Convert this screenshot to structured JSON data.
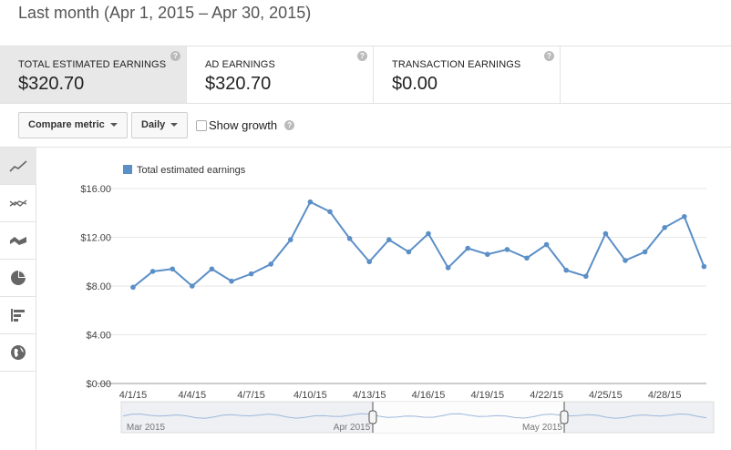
{
  "header": {
    "date_range": "Last month (Apr 1, 2015 – Apr 30, 2015)"
  },
  "metrics": [
    {
      "label": "TOTAL ESTIMATED EARNINGS",
      "value": "$320.70",
      "selected": true
    },
    {
      "label": "AD EARNINGS",
      "value": "$320.70",
      "selected": false
    },
    {
      "label": "TRANSACTION EARNINGS",
      "value": "$0.00",
      "selected": false
    }
  ],
  "toolbar": {
    "compare_label": "Compare metric",
    "granularity_label": "Daily",
    "show_growth_label": "Show growth",
    "show_growth_checked": false
  },
  "sidebar": {
    "items": [
      {
        "icon": "line-chart-icon",
        "active": true
      },
      {
        "icon": "multi-line-chart-icon",
        "active": false
      },
      {
        "icon": "area-chart-icon",
        "active": false
      },
      {
        "icon": "pie-chart-icon",
        "active": false
      },
      {
        "icon": "bar-chart-icon",
        "active": false
      },
      {
        "icon": "globe-icon",
        "active": false
      }
    ]
  },
  "colors": {
    "series": "#5b8fc7",
    "selected_bg": "#e8e8e8"
  },
  "chart_data": {
    "type": "line",
    "legend": [
      "Total estimated earnings"
    ],
    "legend_position": "top-left",
    "ylim": [
      0,
      16
    ],
    "y_ticks": [
      "$0.00",
      "$4.00",
      "$8.00",
      "$12.00",
      "$16.00"
    ],
    "y_tick_values": [
      0,
      4,
      8,
      12,
      16
    ],
    "x_tick_labels": [
      "4/1/15",
      "4/4/15",
      "4/7/15",
      "4/10/15",
      "4/13/15",
      "4/16/15",
      "4/19/15",
      "4/22/15",
      "4/25/15",
      "4/28/15"
    ],
    "x_tick_days": [
      1,
      4,
      7,
      10,
      13,
      16,
      19,
      22,
      25,
      28
    ],
    "grid": true,
    "series": [
      {
        "name": "Total estimated earnings",
        "x": [
          1,
          2,
          3,
          4,
          5,
          6,
          7,
          8,
          9,
          10,
          11,
          12,
          13,
          14,
          15,
          16,
          17,
          18,
          19,
          20,
          21,
          22,
          23,
          24,
          25,
          26,
          27,
          28,
          29,
          30
        ],
        "values": [
          7.9,
          9.2,
          9.4,
          8.0,
          9.4,
          8.4,
          9.0,
          9.8,
          11.8,
          14.9,
          14.1,
          11.9,
          10.0,
          11.8,
          10.8,
          12.3,
          9.5,
          11.1,
          10.6,
          11.0,
          10.3,
          11.4,
          9.3,
          8.8,
          12.3,
          10.1,
          10.8,
          12.8,
          13.7,
          9.6
        ]
      }
    ],
    "navigator": {
      "labels": [
        "Mar 2015",
        "Apr 2015",
        "May 2015"
      ]
    }
  }
}
